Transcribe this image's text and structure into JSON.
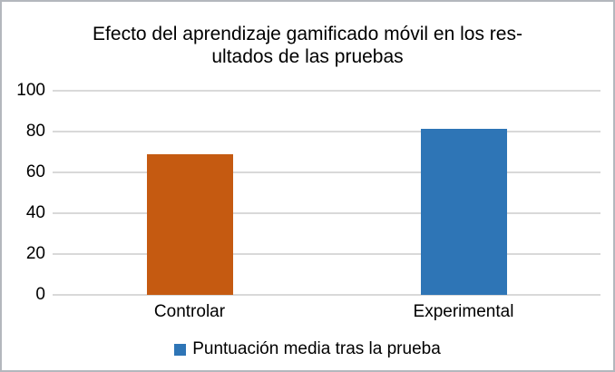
{
  "chart_data": {
    "type": "bar",
    "title": "Efecto del aprendizaje gamificado móvil en los resultados de las pruebas",
    "title_lines": [
      "Efecto del aprendizaje gamificado móvil en los res-",
      "ultados de las pruebas"
    ],
    "categories": [
      "Controlar",
      "Experimental"
    ],
    "series": [
      {
        "name": "Puntuación media tras la prueba",
        "values": [
          68.7,
          81.4
        ],
        "point_colors": [
          "#C55A11",
          "#2E75B6"
        ],
        "legend_color": "#2E75B6"
      }
    ],
    "xlabel": "",
    "ylabel": "",
    "ylim": [
      0,
      100
    ],
    "y_ticks": [
      0,
      20,
      40,
      60,
      80,
      100
    ],
    "grid": true,
    "legend_position": "bottom"
  },
  "style": {
    "gridline_color": "#d9d9d9",
    "border_color": "#b3b7bd",
    "background": "#ffffff",
    "text_color": "#000000"
  }
}
